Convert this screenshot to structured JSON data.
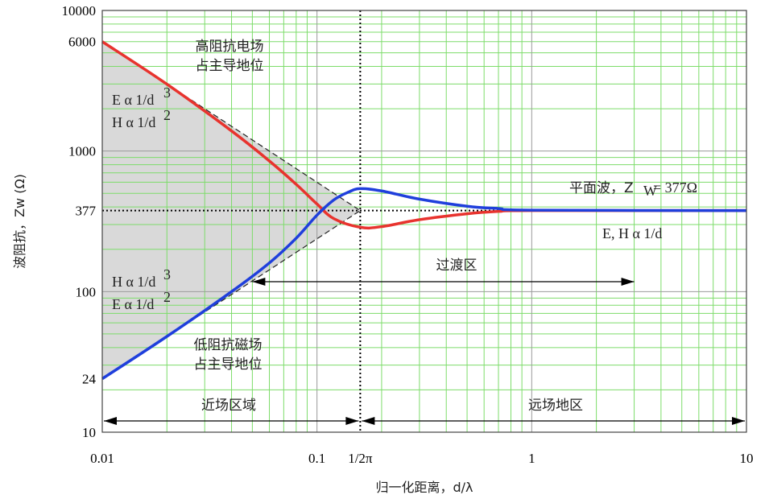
{
  "chart_data": {
    "type": "line",
    "title": "",
    "xlabel": "归一化距离，d/λ",
    "ylabel": "波阻抗，Zw (Ω)",
    "x_scale": "log",
    "y_scale": "log",
    "xlim": [
      0.01,
      10
    ],
    "ylim": [
      10,
      10000
    ],
    "grid": true,
    "x_ticks": [
      {
        "value": 0.01,
        "label": "0.01"
      },
      {
        "value": 0.1,
        "label": "0.1"
      },
      {
        "value": 0.159,
        "label": "1/2π"
      },
      {
        "value": 1,
        "label": "1"
      },
      {
        "value": 10,
        "label": "10"
      }
    ],
    "y_ticks": [
      {
        "value": 10,
        "label": "10"
      },
      {
        "value": 24,
        "label": "24"
      },
      {
        "value": 100,
        "label": "100"
      },
      {
        "value": 377,
        "label": "377"
      },
      {
        "value": 1000,
        "label": "1000"
      },
      {
        "value": 6000,
        "label": "6000"
      },
      {
        "value": 10000,
        "label": "10000"
      }
    ],
    "series": [
      {
        "color": "#e8332e",
        "x": [
          0.01,
          0.02,
          0.04,
          0.06,
          0.08,
          0.1,
          0.12,
          0.159,
          0.2,
          0.3,
          0.5,
          0.7,
          1,
          10
        ],
        "values": [
          6000,
          2990,
          1390,
          850,
          580,
          420,
          330,
          287,
          290,
          325,
          358,
          372,
          377,
          377
        ]
      },
      {
        "color": "#1f3fdc",
        "x": [
          0.01,
          0.02,
          0.04,
          0.06,
          0.08,
          0.1,
          0.12,
          0.14,
          0.159,
          0.2,
          0.3,
          0.5,
          0.7,
          1,
          10
        ],
        "values": [
          24,
          48,
          100,
          160,
          240,
          350,
          450,
          510,
          540,
          520,
          455,
          405,
          390,
          380,
          377
        ]
      }
    ],
    "asymptotes": {
      "upper": {
        "x": [
          0.01,
          0.159
        ],
        "values": [
          6000,
          377
        ]
      },
      "lower": {
        "x": [
          0.01,
          0.159
        ],
        "values": [
          24,
          377
        ]
      }
    },
    "reference_lines": {
      "y": 377,
      "x": 0.159
    },
    "annotations": {
      "high_impedance": [
        "高阻抗电场",
        "占主导地位"
      ],
      "low_impedance": [
        "低阻抗磁场",
        "占主导地位"
      ],
      "e_prop_d3": "E α 1/d",
      "h_prop_d2": "H α 1/d",
      "h_prop_d3": "H α 1/d",
      "e_prop_d2": "E α 1/d",
      "exp3": "3",
      "exp2": "2",
      "plane_wave": "平面波，Z",
      "plane_wave_sub": "W",
      "plane_wave_value": " = 377Ω",
      "far_prop": "E, H α 1/d",
      "transition": "过渡区",
      "near_field": "近场区域",
      "far_field": "远场地区"
    },
    "colors": {
      "grid_minor": "#7ddc6a",
      "grid_major": "#9a9a9a",
      "shade": "#d9d9d9"
    }
  }
}
